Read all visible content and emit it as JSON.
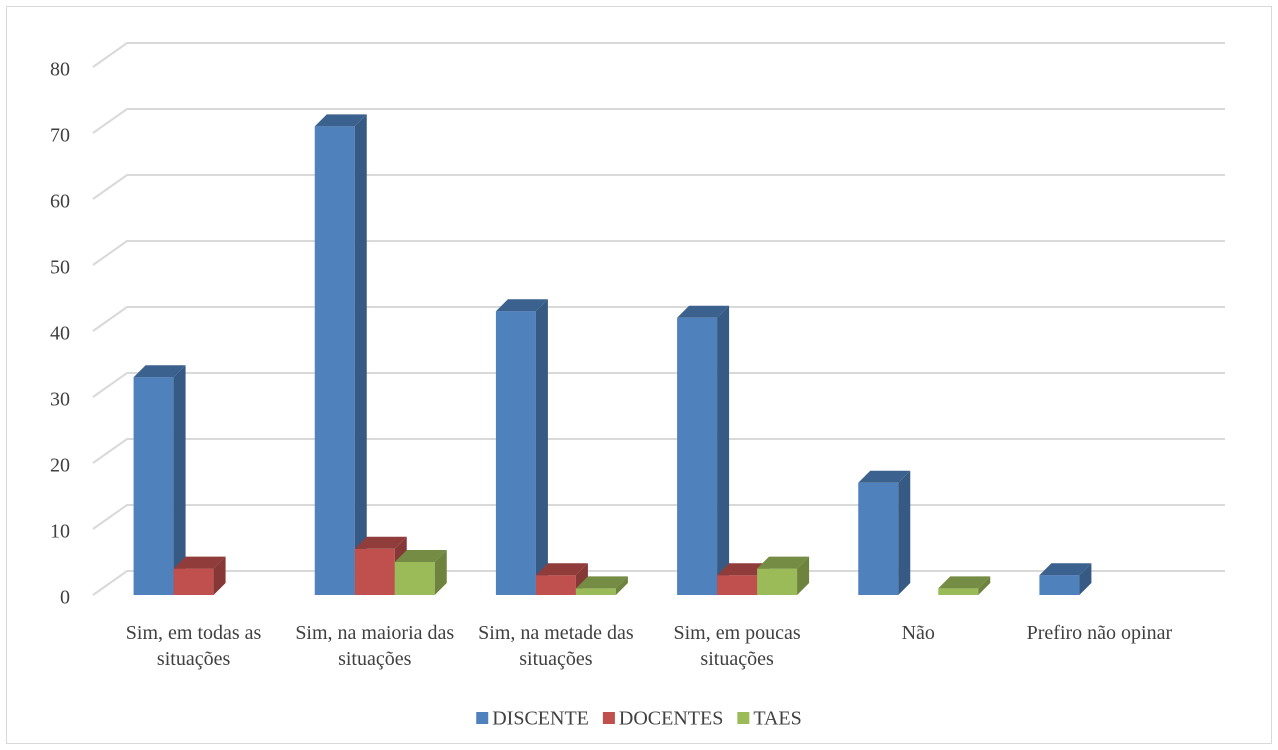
{
  "chart_data": {
    "type": "bar3d",
    "categories": [
      "Sim, em todas as situações",
      "Sim, na maioria das situações",
      "Sim, na metade das situações",
      "Sim, em poucas situações",
      "Não",
      "Prefiro não opinar"
    ],
    "series": [
      {
        "name": "DISCENTE",
        "color": "#4f81bd",
        "values": [
          33,
          71,
          43,
          42,
          17,
          3
        ]
      },
      {
        "name": "DOCENTES",
        "color": "#c0504d",
        "values": [
          4,
          7,
          3,
          3,
          0,
          0
        ]
      },
      {
        "name": "TAES",
        "color": "#9bbb59",
        "values": [
          0,
          5,
          1,
          4,
          1,
          0
        ]
      }
    ],
    "ylim": [
      0,
      80
    ],
    "yticks": [
      0,
      10,
      20,
      30,
      40,
      50,
      60,
      70,
      80
    ],
    "grid": true,
    "legend": "bottom"
  }
}
